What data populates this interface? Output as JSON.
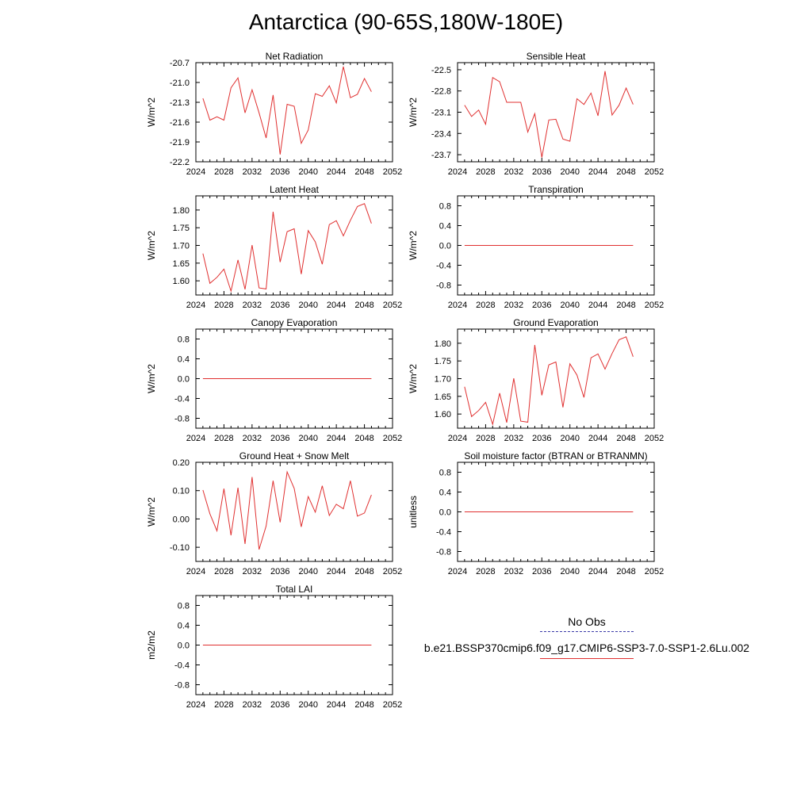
{
  "title": "Antarctica (90-65S,180W-180E)",
  "legend": {
    "obs_label": "No Obs",
    "model_label": "b.e21.BSSP370cmip6.f09_g17.CMIP6-SSP3-7.0-SSP1-2.6Lu.002",
    "obs_color": "#3a3aa8",
    "model_color": "#e03030"
  },
  "chart_data": [
    {
      "type": "line",
      "title": "Net Radiation",
      "ylabel": "W/m^2",
      "xlabel": "",
      "xlim": [
        2024,
        2052
      ],
      "ylim": [
        -22.2,
        -20.7
      ],
      "xticks": [
        2024,
        2028,
        2032,
        2036,
        2040,
        2044,
        2048,
        2052
      ],
      "xtick_labels": [
        "2024",
        "2028",
        "2032",
        "2036",
        "2040",
        "2044",
        "2048",
        "2052"
      ],
      "yticks": [
        -20.7,
        -21.0,
        -21.3,
        -21.6,
        -21.9,
        -22.2
      ],
      "ytick_labels": [
        "-20.7",
        "-21.0",
        "-21.3",
        "-21.6",
        "-21.9",
        "-22.2"
      ],
      "series": [
        {
          "color": "#e03030",
          "x": [
            2025,
            2026,
            2027,
            2028,
            2029,
            2030,
            2031,
            2032,
            2033,
            2034,
            2035,
            2036,
            2037,
            2038,
            2039,
            2040,
            2041,
            2042,
            2043,
            2044,
            2045,
            2046,
            2047,
            2048,
            2049
          ],
          "y": [
            -21.24,
            -21.57,
            -21.52,
            -21.57,
            -21.08,
            -20.93,
            -21.46,
            -21.11,
            -21.46,
            -21.84,
            -21.19,
            -22.09,
            -21.33,
            -21.36,
            -21.92,
            -21.72,
            -21.17,
            -21.21,
            -21.05,
            -21.31,
            -20.76,
            -21.23,
            -21.18,
            -20.94,
            -21.14
          ]
        }
      ]
    },
    {
      "type": "line",
      "title": "Sensible Heat",
      "ylabel": "W/m^2",
      "xlabel": "",
      "xlim": [
        2024,
        2052
      ],
      "ylim": [
        -23.8,
        -22.4
      ],
      "xticks": [
        2024,
        2028,
        2032,
        2036,
        2040,
        2044,
        2048,
        2052
      ],
      "xtick_labels": [
        "2024",
        "2028",
        "2032",
        "2036",
        "2040",
        "2044",
        "2048",
        "2052"
      ],
      "yticks": [
        -22.5,
        -22.8,
        -23.1,
        -23.4,
        -23.7
      ],
      "ytick_labels": [
        "-22.5",
        "-22.8",
        "-23.1",
        "-23.4",
        "-23.7"
      ],
      "series": [
        {
          "color": "#e03030",
          "x": [
            2025,
            2026,
            2027,
            2028,
            2029,
            2030,
            2031,
            2032,
            2033,
            2034,
            2035,
            2036,
            2037,
            2038,
            2039,
            2040,
            2041,
            2042,
            2043,
            2044,
            2045,
            2046,
            2047,
            2048,
            2049
          ],
          "y": [
            -23.0,
            -23.16,
            -23.07,
            -23.27,
            -22.61,
            -22.67,
            -22.96,
            -22.96,
            -22.96,
            -23.38,
            -23.12,
            -23.74,
            -23.21,
            -23.2,
            -23.48,
            -23.51,
            -22.91,
            -22.99,
            -22.83,
            -23.15,
            -22.52,
            -23.14,
            -23.0,
            -22.76,
            -22.99
          ]
        }
      ]
    },
    {
      "type": "line",
      "title": "Latent Heat",
      "ylabel": "W/m^2",
      "xlabel": "",
      "xlim": [
        2024,
        2052
      ],
      "ylim": [
        1.56,
        1.84
      ],
      "xticks": [
        2024,
        2028,
        2032,
        2036,
        2040,
        2044,
        2048,
        2052
      ],
      "xtick_labels": [
        "2024",
        "2028",
        "2032",
        "2036",
        "2040",
        "2044",
        "2048",
        "2052"
      ],
      "yticks": [
        1.6,
        1.65,
        1.7,
        1.75,
        1.8
      ],
      "ytick_labels": [
        "1.60",
        "1.65",
        "1.70",
        "1.75",
        "1.80"
      ],
      "series": [
        {
          "color": "#e03030",
          "x": [
            2025,
            2026,
            2027,
            2028,
            2029,
            2030,
            2031,
            2032,
            2033,
            2034,
            2035,
            2036,
            2037,
            2038,
            2039,
            2040,
            2041,
            2042,
            2043,
            2044,
            2045,
            2046,
            2047,
            2048,
            2049
          ],
          "y": [
            1.677,
            1.593,
            1.61,
            1.633,
            1.571,
            1.659,
            1.576,
            1.701,
            1.58,
            1.577,
            1.795,
            1.653,
            1.739,
            1.747,
            1.619,
            1.742,
            1.71,
            1.647,
            1.759,
            1.77,
            1.727,
            1.771,
            1.81,
            1.818,
            1.762
          ]
        }
      ]
    },
    {
      "type": "line",
      "title": "Transpiration",
      "ylabel": "W/m^2",
      "xlabel": "",
      "xlim": [
        2024,
        2052
      ],
      "ylim": [
        -1,
        1
      ],
      "xticks": [
        2024,
        2028,
        2032,
        2036,
        2040,
        2044,
        2048,
        2052
      ],
      "xtick_labels": [
        "2024",
        "2028",
        "2032",
        "2036",
        "2040",
        "2044",
        "2048",
        "2052"
      ],
      "yticks": [
        0.8,
        0.4,
        0.0,
        -0.4,
        -0.8
      ],
      "ytick_labels": [
        "0.8",
        "0.4",
        "0.0",
        "-0.4",
        "-0.8"
      ],
      "series": [
        {
          "color": "#e03030",
          "x": [
            2025,
            2049
          ],
          "y": [
            0.0,
            0.0
          ]
        }
      ]
    },
    {
      "type": "line",
      "title": "Canopy Evaporation",
      "ylabel": "W/m^2",
      "xlabel": "",
      "xlim": [
        2024,
        2052
      ],
      "ylim": [
        -1,
        1
      ],
      "xticks": [
        2024,
        2028,
        2032,
        2036,
        2040,
        2044,
        2048,
        2052
      ],
      "xtick_labels": [
        "2024",
        "2028",
        "2032",
        "2036",
        "2040",
        "2044",
        "2048",
        "2052"
      ],
      "yticks": [
        0.8,
        0.4,
        0.0,
        -0.4,
        -0.8
      ],
      "ytick_labels": [
        "0.8",
        "0.4",
        "0.0",
        "-0.4",
        "-0.8"
      ],
      "series": [
        {
          "color": "#e03030",
          "x": [
            2025,
            2049
          ],
          "y": [
            0.0,
            0.0
          ]
        }
      ]
    },
    {
      "type": "line",
      "title": "Ground Evaporation",
      "ylabel": "W/m^2",
      "xlabel": "",
      "xlim": [
        2024,
        2052
      ],
      "ylim": [
        1.56,
        1.84
      ],
      "xticks": [
        2024,
        2028,
        2032,
        2036,
        2040,
        2044,
        2048,
        2052
      ],
      "xtick_labels": [
        "2024",
        "2028",
        "2032",
        "2036",
        "2040",
        "2044",
        "2048",
        "2052"
      ],
      "yticks": [
        1.6,
        1.65,
        1.7,
        1.75,
        1.8
      ],
      "ytick_labels": [
        "1.60",
        "1.65",
        "1.70",
        "1.75",
        "1.80"
      ],
      "series": [
        {
          "color": "#e03030",
          "x": [
            2025,
            2026,
            2027,
            2028,
            2029,
            2030,
            2031,
            2032,
            2033,
            2034,
            2035,
            2036,
            2037,
            2038,
            2039,
            2040,
            2041,
            2042,
            2043,
            2044,
            2045,
            2046,
            2047,
            2048,
            2049
          ],
          "y": [
            1.677,
            1.593,
            1.61,
            1.633,
            1.571,
            1.659,
            1.576,
            1.701,
            1.58,
            1.577,
            1.795,
            1.653,
            1.739,
            1.747,
            1.619,
            1.742,
            1.71,
            1.647,
            1.759,
            1.77,
            1.727,
            1.771,
            1.81,
            1.818,
            1.762
          ]
        }
      ]
    },
    {
      "type": "line",
      "title": "Ground Heat + Snow Melt",
      "ylabel": "W/m^2",
      "xlabel": "",
      "xlim": [
        2024,
        2052
      ],
      "ylim": [
        -0.15,
        0.2
      ],
      "xticks": [
        2024,
        2028,
        2032,
        2036,
        2040,
        2044,
        2048,
        2052
      ],
      "xtick_labels": [
        "2024",
        "2028",
        "2032",
        "2036",
        "2040",
        "2044",
        "2048",
        "2052"
      ],
      "yticks": [
        0.2,
        0.1,
        0.0,
        -0.1
      ],
      "ytick_labels": [
        "0.20",
        "0.10",
        "0.00",
        "-0.10"
      ],
      "series": [
        {
          "color": "#e03030",
          "x": [
            2025,
            2026,
            2027,
            2028,
            2029,
            2030,
            2031,
            2032,
            2033,
            2034,
            2035,
            2036,
            2037,
            2038,
            2039,
            2040,
            2041,
            2042,
            2043,
            2044,
            2045,
            2046,
            2047,
            2048,
            2049
          ],
          "y": [
            0.102,
            0.018,
            -0.042,
            0.107,
            -0.058,
            0.11,
            -0.088,
            0.148,
            -0.108,
            -0.025,
            0.135,
            -0.012,
            0.166,
            0.108,
            -0.028,
            0.079,
            0.024,
            0.117,
            0.012,
            0.052,
            0.036,
            0.135,
            0.01,
            0.021,
            0.085
          ]
        }
      ]
    },
    {
      "type": "line",
      "title": "Soil moisture factor (BTRAN or BTRANMN)",
      "ylabel": "unitless",
      "xlabel": "",
      "xlim": [
        2024,
        2052
      ],
      "ylim": [
        -1,
        1
      ],
      "xticks": [
        2024,
        2028,
        2032,
        2036,
        2040,
        2044,
        2048,
        2052
      ],
      "xtick_labels": [
        "2024",
        "2028",
        "2032",
        "2036",
        "2040",
        "2044",
        "2048",
        "2052"
      ],
      "yticks": [
        0.8,
        0.4,
        0.0,
        -0.4,
        -0.8
      ],
      "ytick_labels": [
        "0.8",
        "0.4",
        "0.0",
        "-0.4",
        "-0.8"
      ],
      "series": [
        {
          "color": "#e03030",
          "x": [
            2025,
            2049
          ],
          "y": [
            0.0,
            0.0
          ]
        }
      ]
    },
    {
      "type": "line",
      "title": "Total LAI",
      "ylabel": "m2/m2",
      "xlabel": "",
      "xlim": [
        2024,
        2052
      ],
      "ylim": [
        -1,
        1
      ],
      "xticks": [
        2024,
        2028,
        2032,
        2036,
        2040,
        2044,
        2048,
        2052
      ],
      "xtick_labels": [
        "2024",
        "2028",
        "2032",
        "2036",
        "2040",
        "2044",
        "2048",
        "2052"
      ],
      "yticks": [
        0.8,
        0.4,
        0.0,
        -0.4,
        -0.8
      ],
      "ytick_labels": [
        "0.8",
        "0.4",
        "0.0",
        "-0.4",
        "-0.8"
      ],
      "series": [
        {
          "color": "#e03030",
          "x": [
            2025,
            2049
          ],
          "y": [
            0.0,
            0.0
          ]
        }
      ]
    }
  ]
}
